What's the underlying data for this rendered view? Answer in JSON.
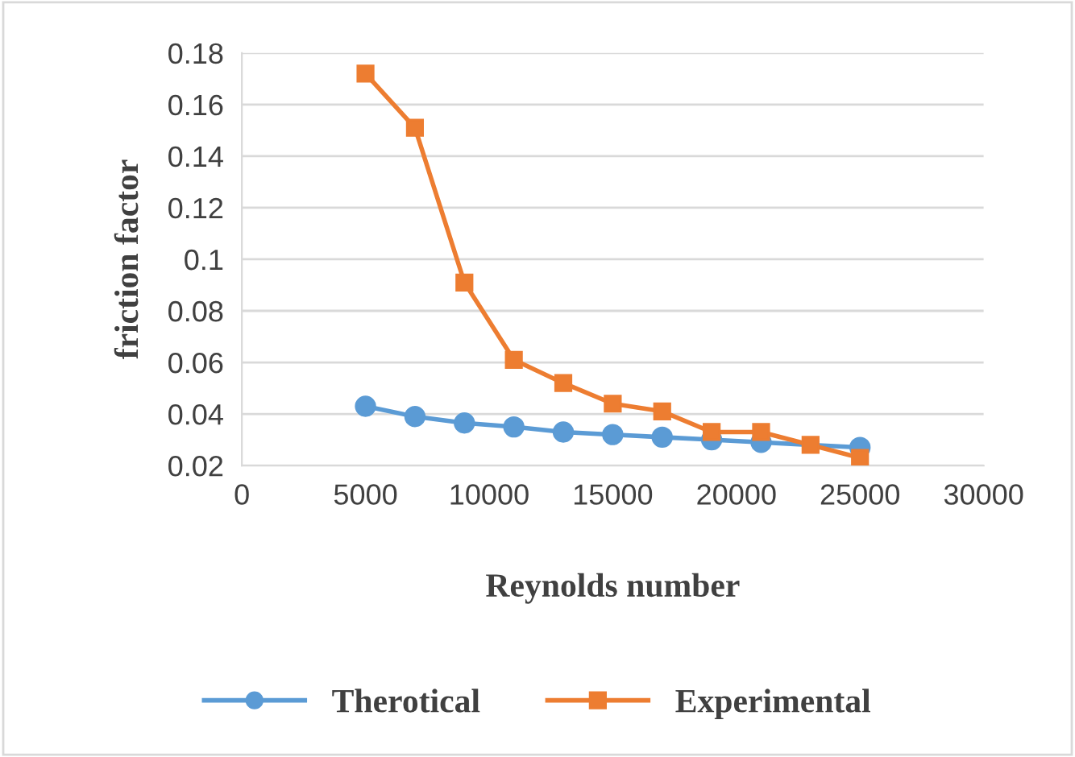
{
  "chart_data": {
    "type": "line",
    "xlabel": "Reynolds number",
    "ylabel": "friction factor",
    "x": [
      5000,
      7000,
      9000,
      11000,
      13000,
      15000,
      17000,
      19000,
      21000,
      23000,
      25000
    ],
    "series": [
      {
        "name": "Therotical",
        "color": "#5b9bd5",
        "marker": "circle",
        "values": [
          0.043,
          0.039,
          0.0365,
          0.035,
          0.033,
          0.032,
          0.031,
          0.03,
          0.029,
          null,
          0.027
        ]
      },
      {
        "name": "Experimental",
        "color": "#ed7d31",
        "marker": "square",
        "values": [
          0.172,
          0.151,
          0.091,
          0.061,
          0.052,
          0.044,
          0.041,
          0.033,
          0.033,
          0.028,
          0.023
        ]
      }
    ],
    "xlim": [
      0,
      30000
    ],
    "xticks": [
      0,
      5000,
      10000,
      15000,
      20000,
      25000,
      30000
    ],
    "ylim": [
      0.02,
      0.18
    ],
    "yticks": [
      0.02,
      0.04,
      0.06,
      0.08,
      0.1,
      0.12,
      0.14,
      0.16,
      0.18
    ],
    "grid": "y",
    "legend": "bottom",
    "line_style": "solid"
  }
}
